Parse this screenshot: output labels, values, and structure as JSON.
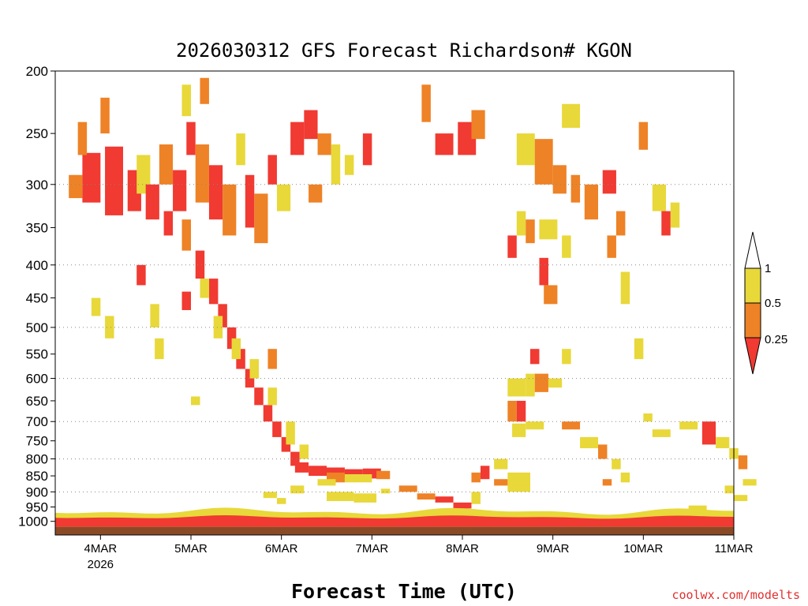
{
  "chart_data": {
    "type": "heatmap",
    "title": "2026030312 GFS Forecast Richardson# KGON",
    "xlabel": "Forecast Time (UTC)",
    "ylabel": "",
    "y_scale": "log-pressure",
    "y_range_hpa": [
      1050,
      200
    ],
    "y_ticks": [
      "200",
      "250",
      "300",
      "350",
      "400",
      "450",
      "500",
      "550",
      "600",
      "650",
      "700",
      "750",
      "800",
      "850",
      "900",
      "950",
      "1000"
    ],
    "x_range": [
      "2026-03-03 12Z",
      "2026-03-11 00Z"
    ],
    "x_ticks": [
      "4MAR",
      "5MAR",
      "6MAR",
      "7MAR",
      "8MAR",
      "9MAR",
      "10MAR",
      "11MAR"
    ],
    "x_year_label": "2026",
    "grid": "dotted horizontal at 300, 400, 500, 600, 700, 800, 900 hPa",
    "legend": {
      "placement": "right",
      "thresholds": [
        "1",
        "0.5",
        "0.25"
      ],
      "colors": [
        "#ffffff",
        "#e8d83a",
        "#ee8226",
        "#f03a32"
      ],
      "meaning": [
        "> 1",
        "0.5 - 1",
        "0.25 - 0.5",
        "< 0.25"
      ]
    },
    "ground_color": "#8b4a26",
    "cells_note": "cells given as [start_day_offset, end_day_offset, p_top_hpa, p_bottom_hpa, class]; day offset from 2026-03-03 12Z; class 1=yellow,2=orange,3=red",
    "cells": [
      [
        0.3,
        0.5,
        268,
        320,
        3
      ],
      [
        0.55,
        0.75,
        262,
        335,
        3
      ],
      [
        0.8,
        0.95,
        285,
        330,
        3
      ],
      [
        0.15,
        0.3,
        290,
        315,
        2
      ],
      [
        0.25,
        0.35,
        240,
        270,
        2
      ],
      [
        0.5,
        0.6,
        220,
        250,
        2
      ],
      [
        0.9,
        1.05,
        270,
        310,
        1
      ],
      [
        1.0,
        1.15,
        300,
        340,
        3
      ],
      [
        1.15,
        1.3,
        260,
        300,
        2
      ],
      [
        1.3,
        1.45,
        285,
        330,
        3
      ],
      [
        1.45,
        1.55,
        240,
        270,
        3
      ],
      [
        1.55,
        1.7,
        260,
        320,
        2
      ],
      [
        1.7,
        1.85,
        280,
        340,
        3
      ],
      [
        1.85,
        2.0,
        300,
        360,
        2
      ],
      [
        1.4,
        1.5,
        210,
        235,
        1
      ],
      [
        1.6,
        1.7,
        205,
        225,
        2
      ],
      [
        2.0,
        2.1,
        250,
        280,
        1
      ],
      [
        2.1,
        2.2,
        290,
        350,
        3
      ],
      [
        2.2,
        2.35,
        310,
        370,
        2
      ],
      [
        2.35,
        2.45,
        270,
        300,
        3
      ],
      [
        2.45,
        2.6,
        300,
        330,
        1
      ],
      [
        2.6,
        2.75,
        240,
        270,
        3
      ],
      [
        2.75,
        2.9,
        230,
        255,
        3
      ],
      [
        2.9,
        3.05,
        250,
        270,
        2
      ],
      [
        3.05,
        3.15,
        260,
        300,
        1
      ],
      [
        2.8,
        2.95,
        300,
        320,
        2
      ],
      [
        3.2,
        3.3,
        270,
        290,
        1
      ],
      [
        3.4,
        3.5,
        250,
        280,
        3
      ],
      [
        4.2,
        4.4,
        250,
        270,
        3
      ],
      [
        4.45,
        4.65,
        240,
        270,
        3
      ],
      [
        4.6,
        4.75,
        230,
        255,
        2
      ],
      [
        4.05,
        4.15,
        210,
        240,
        2
      ],
      [
        5.1,
        5.3,
        250,
        280,
        1
      ],
      [
        5.3,
        5.5,
        255,
        300,
        2
      ],
      [
        5.5,
        5.65,
        280,
        310,
        2
      ],
      [
        5.7,
        5.8,
        290,
        320,
        2
      ],
      [
        5.85,
        6.0,
        300,
        340,
        2
      ],
      [
        6.05,
        6.2,
        285,
        310,
        3
      ],
      [
        6.2,
        6.3,
        330,
        360,
        2
      ],
      [
        5.6,
        5.8,
        225,
        245,
        1
      ],
      [
        6.45,
        6.55,
        240,
        265,
        2
      ],
      [
        6.6,
        6.75,
        300,
        330,
        1
      ],
      [
        6.8,
        6.9,
        320,
        350,
        1
      ],
      [
        5.1,
        5.2,
        330,
        360,
        1
      ],
      [
        5.2,
        5.3,
        340,
        370,
        2
      ],
      [
        5.35,
        5.55,
        340,
        365,
        1
      ],
      [
        5.0,
        5.1,
        360,
        390,
        3
      ],
      [
        5.35,
        5.45,
        390,
        430,
        3
      ],
      [
        5.6,
        5.7,
        360,
        390,
        1
      ],
      [
        6.1,
        6.2,
        360,
        390,
        2
      ],
      [
        6.7,
        6.8,
        330,
        360,
        3
      ],
      [
        0.9,
        1.0,
        400,
        430,
        3
      ],
      [
        1.2,
        1.3,
        330,
        360,
        3
      ],
      [
        1.4,
        1.5,
        340,
        380,
        2
      ],
      [
        1.55,
        1.65,
        380,
        420,
        3
      ],
      [
        1.7,
        1.8,
        420,
        460,
        3
      ],
      [
        1.8,
        1.9,
        460,
        500,
        3
      ],
      [
        1.9,
        2.0,
        500,
        540,
        3
      ],
      [
        2.0,
        2.1,
        540,
        580,
        3
      ],
      [
        2.1,
        2.2,
        580,
        620,
        3
      ],
      [
        2.2,
        2.3,
        620,
        660,
        3
      ],
      [
        2.3,
        2.4,
        660,
        700,
        3
      ],
      [
        2.4,
        2.5,
        700,
        740,
        3
      ],
      [
        2.5,
        2.6,
        740,
        780,
        3
      ],
      [
        2.6,
        2.7,
        780,
        820,
        3
      ],
      [
        1.75,
        1.85,
        480,
        520,
        1
      ],
      [
        1.95,
        2.05,
        520,
        560,
        1
      ],
      [
        2.15,
        2.25,
        560,
        600,
        1
      ],
      [
        2.35,
        2.45,
        620,
        660,
        1
      ],
      [
        2.55,
        2.65,
        700,
        760,
        1
      ],
      [
        2.7,
        2.8,
        760,
        800,
        1
      ],
      [
        2.35,
        2.45,
        540,
        580,
        2
      ],
      [
        0.4,
        0.5,
        450,
        480,
        1
      ],
      [
        0.55,
        0.65,
        480,
        520,
        1
      ],
      [
        1.05,
        1.15,
        460,
        500,
        1
      ],
      [
        1.1,
        1.2,
        520,
        560,
        1
      ],
      [
        1.5,
        1.6,
        640,
        660,
        1
      ],
      [
        1.4,
        1.5,
        440,
        470,
        3
      ],
      [
        2.65,
        2.8,
        810,
        840,
        3
      ],
      [
        2.8,
        3.0,
        820,
        850,
        3
      ],
      [
        3.0,
        3.2,
        825,
        855,
        3
      ],
      [
        3.2,
        3.4,
        830,
        860,
        3
      ],
      [
        3.4,
        3.6,
        828,
        858,
        3
      ],
      [
        3.0,
        3.2,
        840,
        870,
        2
      ],
      [
        3.2,
        3.5,
        845,
        870,
        1
      ],
      [
        3.55,
        3.7,
        835,
        860,
        2
      ],
      [
        2.9,
        3.1,
        860,
        880,
        1
      ],
      [
        3.0,
        3.3,
        900,
        930,
        1
      ],
      [
        3.3,
        3.55,
        905,
        935,
        1
      ],
      [
        3.6,
        3.7,
        890,
        905,
        1
      ],
      [
        2.6,
        2.75,
        880,
        905,
        1
      ],
      [
        2.3,
        2.45,
        900,
        920,
        1
      ],
      [
        2.45,
        2.55,
        920,
        940,
        1
      ],
      [
        4.2,
        4.4,
        915,
        935,
        3
      ],
      [
        4.4,
        4.6,
        935,
        955,
        3
      ],
      [
        4.0,
        4.2,
        905,
        925,
        2
      ],
      [
        3.8,
        4.0,
        880,
        900,
        2
      ],
      [
        4.6,
        4.7,
        900,
        940,
        1
      ],
      [
        4.6,
        4.7,
        840,
        870,
        2
      ],
      [
        4.7,
        4.8,
        820,
        860,
        3
      ],
      [
        4.85,
        5.0,
        800,
        830,
        1
      ],
      [
        5.0,
        5.25,
        840,
        900,
        1
      ],
      [
        4.85,
        5.0,
        860,
        880,
        2
      ],
      [
        5.2,
        5.3,
        590,
        640,
        1
      ],
      [
        5.0,
        5.2,
        600,
        640,
        1
      ],
      [
        5.0,
        5.1,
        650,
        700,
        2
      ],
      [
        5.1,
        5.2,
        650,
        700,
        3
      ],
      [
        5.2,
        5.4,
        700,
        720,
        1
      ],
      [
        5.3,
        5.45,
        590,
        630,
        2
      ],
      [
        5.05,
        5.2,
        705,
        740,
        1
      ],
      [
        5.25,
        5.35,
        540,
        570,
        3
      ],
      [
        5.4,
        5.55,
        430,
        460,
        2
      ],
      [
        5.45,
        5.6,
        600,
        620,
        1
      ],
      [
        5.6,
        5.8,
        700,
        720,
        2
      ],
      [
        5.8,
        6.0,
        740,
        770,
        1
      ],
      [
        6.0,
        6.1,
        760,
        800,
        2
      ],
      [
        6.15,
        6.25,
        800,
        830,
        1
      ],
      [
        6.25,
        6.35,
        840,
        870,
        1
      ],
      [
        6.05,
        6.15,
        860,
        880,
        2
      ],
      [
        5.6,
        5.7,
        540,
        570,
        1
      ],
      [
        6.25,
        6.35,
        410,
        460,
        1
      ],
      [
        6.4,
        6.5,
        520,
        560,
        1
      ],
      [
        6.5,
        6.6,
        680,
        700,
        1
      ],
      [
        6.6,
        6.8,
        720,
        740,
        1
      ],
      [
        6.9,
        7.1,
        700,
        720,
        1
      ],
      [
        7.15,
        7.3,
        700,
        760,
        3
      ],
      [
        7.3,
        7.45,
        740,
        770,
        1
      ],
      [
        7.45,
        7.55,
        770,
        800,
        1
      ],
      [
        7.55,
        7.65,
        790,
        830,
        2
      ],
      [
        7.6,
        7.75,
        860,
        880,
        1
      ],
      [
        7.4,
        7.5,
        880,
        905,
        1
      ],
      [
        7.5,
        7.65,
        910,
        930,
        1
      ],
      [
        7.0,
        7.2,
        945,
        965,
        1
      ],
      [
        1.6,
        1.7,
        420,
        450,
        1
      ]
    ],
    "surface_layers": [
      {
        "color": "#f03a32",
        "start": 0.0,
        "end": 7.5,
        "note": "red layer above ground ~950-1000 hPa"
      },
      {
        "color": "#e8d83a",
        "start": 0.0,
        "end": 7.5,
        "note": "yellow fringe"
      }
    ]
  }
}
